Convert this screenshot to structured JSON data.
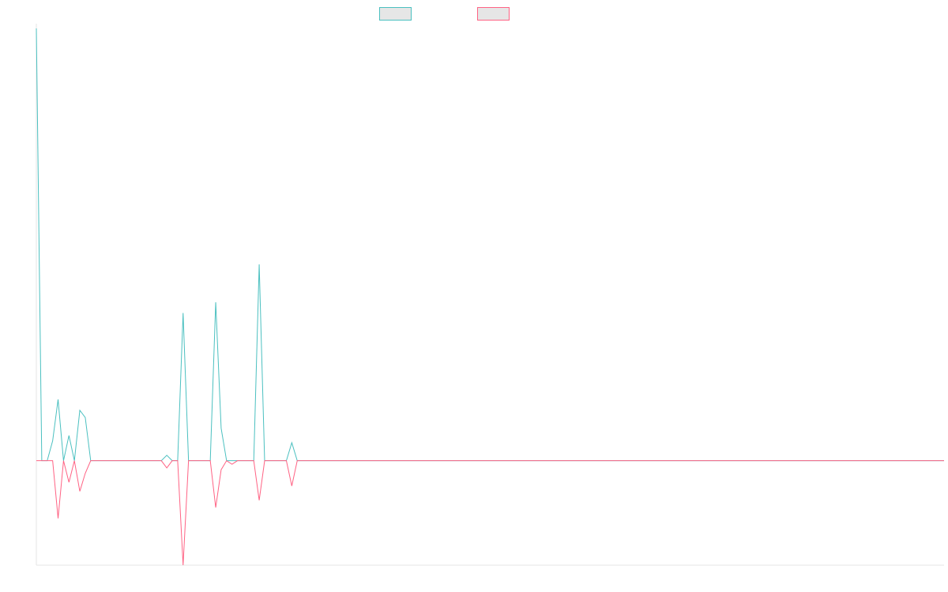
{
  "chart_data": {
    "type": "line",
    "title": "",
    "xlabel": "",
    "ylabel": "",
    "grid": false,
    "legend_placement": "top-center",
    "x": [
      0,
      1,
      2,
      3,
      4,
      5,
      6,
      7,
      8,
      9,
      10,
      11,
      12,
      13,
      14,
      15,
      16,
      17,
      18,
      19,
      20,
      21,
      22,
      23,
      24,
      25,
      26,
      27,
      28,
      29,
      30,
      31,
      32,
      33,
      34,
      35,
      36,
      37,
      38,
      39,
      40,
      41,
      42,
      43,
      44,
      45,
      46,
      47,
      48,
      49,
      50,
      51,
      52,
      53,
      54,
      55,
      56,
      57,
      58,
      59,
      60,
      61,
      62,
      63,
      64,
      65,
      66,
      67,
      68,
      69,
      70,
      71,
      72,
      73,
      74,
      75,
      76,
      77,
      78,
      79,
      80,
      81,
      82,
      83,
      84,
      85,
      86,
      87,
      88,
      89,
      90,
      91,
      92,
      93,
      94,
      95,
      96,
      97,
      98,
      99,
      100,
      101,
      102,
      103,
      104,
      105,
      106,
      107,
      108,
      109,
      110,
      111,
      112,
      113,
      114,
      115,
      116,
      117,
      118,
      119,
      120,
      121,
      122,
      123,
      124,
      125,
      126,
      127,
      128,
      129,
      130,
      131,
      132,
      133,
      134,
      135,
      136,
      137,
      138,
      139,
      140,
      141,
      142,
      143,
      144,
      145,
      146,
      147,
      148,
      149,
      150,
      151,
      152,
      153,
      154,
      155,
      156,
      157,
      158,
      159,
      160,
      161,
      162,
      163,
      164,
      165,
      166,
      167
    ],
    "xlim": [
      0,
      167
    ],
    "ylim": [
      -2.9,
      12
    ],
    "series": [
      {
        "name": "",
        "color": "#4bc0c0",
        "values": [
          12,
          0,
          0,
          0.55,
          1.7,
          0,
          0.7,
          0,
          1.4,
          1.2,
          0,
          0,
          0,
          0,
          0,
          0,
          0,
          0,
          0,
          0,
          0,
          0,
          0,
          0,
          0.15,
          0,
          0,
          4.1,
          0,
          0,
          0,
          0,
          0,
          4.4,
          0.9,
          0,
          0,
          0,
          0,
          0,
          0,
          5.45,
          0,
          0,
          0,
          0,
          0,
          0.5,
          0,
          0,
          0,
          0,
          0,
          0,
          0,
          0,
          0,
          0,
          0,
          0,
          0,
          0,
          0,
          0,
          0,
          0,
          0,
          0,
          0,
          0,
          0,
          0,
          0,
          0,
          0,
          0,
          0,
          0,
          0,
          0,
          0,
          0,
          0,
          0,
          0,
          0,
          0,
          0,
          0,
          0,
          0,
          0,
          0,
          0,
          0,
          0,
          0,
          0,
          0,
          0,
          0,
          0,
          0,
          0,
          0,
          0,
          0,
          0,
          0,
          0,
          0,
          0,
          0,
          0,
          0,
          0,
          0,
          0,
          0,
          0,
          0,
          0,
          0,
          0,
          0,
          0,
          0,
          0,
          0,
          0,
          0,
          0,
          0,
          0,
          0,
          0,
          0,
          0,
          0,
          0,
          0,
          0,
          0,
          0,
          0,
          0,
          0,
          0,
          0,
          0,
          0,
          0,
          0,
          0,
          0,
          0,
          0,
          0,
          0,
          0,
          0,
          0,
          0,
          0,
          0,
          0,
          0,
          0
        ]
      },
      {
        "name": "",
        "color": "#ff6384",
        "values": [
          0,
          0,
          0,
          0,
          -1.6,
          0,
          -0.6,
          0,
          -0.85,
          -0.35,
          0,
          0,
          0,
          0,
          0,
          0,
          0,
          0,
          0,
          0,
          0,
          0,
          0,
          0,
          -0.2,
          0,
          0,
          -2.9,
          0,
          0,
          0,
          0,
          0,
          -1.3,
          -0.25,
          0,
          -0.1,
          0,
          0,
          0,
          0,
          -1.1,
          0,
          0,
          0,
          0,
          0,
          -0.7,
          0,
          0,
          0,
          0,
          0,
          0,
          0,
          0,
          0,
          0,
          0,
          0,
          0,
          0,
          0,
          0,
          0,
          0,
          0,
          0,
          0,
          0,
          0,
          0,
          0,
          0,
          0,
          0,
          0,
          0,
          0,
          0,
          0,
          0,
          0,
          0,
          0,
          0,
          0,
          0,
          0,
          0,
          0,
          0,
          0,
          0,
          0,
          0,
          0,
          0,
          0,
          0,
          0,
          0,
          0,
          0,
          0,
          0,
          0,
          0,
          0,
          0,
          0,
          0,
          0,
          0,
          0,
          0,
          0,
          0,
          0,
          0,
          0,
          0,
          0,
          0,
          0,
          0,
          0,
          0,
          0,
          0,
          0,
          0,
          0,
          0,
          0,
          0,
          0,
          0,
          0,
          0,
          0,
          0,
          0,
          0,
          0,
          0,
          0,
          0,
          0,
          0,
          0,
          0,
          0,
          0,
          0,
          0,
          0,
          0,
          0,
          0,
          0,
          0,
          0,
          0,
          0,
          0,
          0,
          0
        ]
      }
    ]
  }
}
